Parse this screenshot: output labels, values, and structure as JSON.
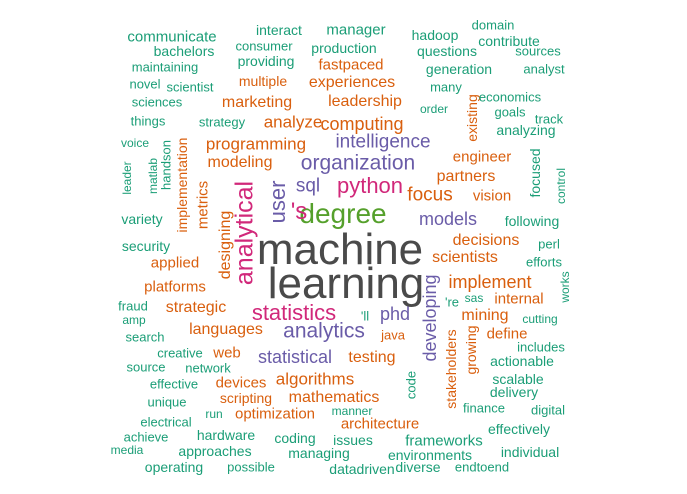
{
  "palette": {
    "gray": "#4a4a4a",
    "purple": "#6a5ca8",
    "green": "#55a02b",
    "magenta": "#d1287a",
    "orange": "#d95f0e",
    "teal": "#1b9e77"
  },
  "words": [
    {
      "text": "machine",
      "color": "gray"
    },
    {
      "text": "learning",
      "color": "gray"
    },
    {
      "text": "degree",
      "color": "green"
    },
    {
      "text": "'s",
      "color": "magenta"
    },
    {
      "text": "python",
      "color": "magenta"
    },
    {
      "text": "sql",
      "color": "purple"
    },
    {
      "text": "user",
      "color": "purple"
    },
    {
      "text": "analytical",
      "color": "magenta"
    },
    {
      "text": "statistics",
      "color": "magenta"
    },
    {
      "text": "analytics",
      "color": "purple"
    },
    {
      "text": "organization",
      "color": "purple"
    },
    {
      "text": "intelligence",
      "color": "purple"
    },
    {
      "text": "programming",
      "color": "orange"
    },
    {
      "text": "computing",
      "color": "orange"
    },
    {
      "text": "analyze",
      "color": "orange"
    },
    {
      "text": "leadership",
      "color": "orange"
    },
    {
      "text": "marketing",
      "color": "orange"
    },
    {
      "text": "experiences",
      "color": "orange"
    },
    {
      "text": "multiple",
      "color": "orange"
    },
    {
      "text": "fastpaced",
      "color": "orange"
    },
    {
      "text": "modeling",
      "color": "orange"
    },
    {
      "text": "focus",
      "color": "orange"
    },
    {
      "text": "partners",
      "color": "orange"
    },
    {
      "text": "engineer",
      "color": "orange"
    },
    {
      "text": "models",
      "color": "purple"
    },
    {
      "text": "decisions",
      "color": "orange"
    },
    {
      "text": "scientists",
      "color": "orange"
    },
    {
      "text": "implement",
      "color": "orange"
    },
    {
      "text": "vision",
      "color": "orange"
    },
    {
      "text": "phd",
      "color": "purple"
    },
    {
      "text": "developing",
      "color": "purple"
    },
    {
      "text": "statistical",
      "color": "purple"
    },
    {
      "text": "testing",
      "color": "orange"
    },
    {
      "text": "algorithms",
      "color": "orange"
    },
    {
      "text": "mathematics",
      "color": "orange"
    },
    {
      "text": "languages",
      "color": "orange"
    },
    {
      "text": "strategic",
      "color": "orange"
    },
    {
      "text": "applied",
      "color": "orange"
    },
    {
      "text": "platforms",
      "color": "orange"
    },
    {
      "text": "designing",
      "color": "orange"
    },
    {
      "text": "metrics",
      "color": "orange"
    },
    {
      "text": "implementation",
      "color": "orange"
    },
    {
      "text": "existing",
      "color": "orange"
    },
    {
      "text": "internal",
      "color": "orange"
    },
    {
      "text": "mining",
      "color": "orange"
    },
    {
      "text": "define",
      "color": "orange"
    },
    {
      "text": "stakeholders",
      "color": "orange"
    },
    {
      "text": "growing",
      "color": "orange"
    },
    {
      "text": "devices",
      "color": "orange"
    },
    {
      "text": "scripting",
      "color": "orange"
    },
    {
      "text": "optimization",
      "color": "orange"
    },
    {
      "text": "web",
      "color": "orange"
    },
    {
      "text": "architecture",
      "color": "orange"
    },
    {
      "text": "java",
      "color": "orange"
    },
    {
      "text": "'ll",
      "color": "teal"
    },
    {
      "text": "'re",
      "color": "teal"
    },
    {
      "text": "sas",
      "color": "teal"
    },
    {
      "text": "communicate",
      "color": "teal"
    },
    {
      "text": "interact",
      "color": "teal"
    },
    {
      "text": "manager",
      "color": "teal"
    },
    {
      "text": "hadoop",
      "color": "teal"
    },
    {
      "text": "domain",
      "color": "teal"
    },
    {
      "text": "contribute",
      "color": "teal"
    },
    {
      "text": "bachelors",
      "color": "teal"
    },
    {
      "text": "consumer",
      "color": "teal"
    },
    {
      "text": "production",
      "color": "teal"
    },
    {
      "text": "questions",
      "color": "teal"
    },
    {
      "text": "sources",
      "color": "teal"
    },
    {
      "text": "maintaining",
      "color": "teal"
    },
    {
      "text": "providing",
      "color": "teal"
    },
    {
      "text": "generation",
      "color": "teal"
    },
    {
      "text": "analyst",
      "color": "teal"
    },
    {
      "text": "novel",
      "color": "teal"
    },
    {
      "text": "scientist",
      "color": "teal"
    },
    {
      "text": "many",
      "color": "teal"
    },
    {
      "text": "sciences",
      "color": "teal"
    },
    {
      "text": "economics",
      "color": "teal"
    },
    {
      "text": "order",
      "color": "teal"
    },
    {
      "text": "goals",
      "color": "teal"
    },
    {
      "text": "things",
      "color": "teal"
    },
    {
      "text": "strategy",
      "color": "teal"
    },
    {
      "text": "track",
      "color": "teal"
    },
    {
      "text": "analyzing",
      "color": "teal"
    },
    {
      "text": "voice",
      "color": "teal"
    },
    {
      "text": "handson",
      "color": "teal"
    },
    {
      "text": "matlab",
      "color": "teal"
    },
    {
      "text": "leader",
      "color": "teal"
    },
    {
      "text": "focused",
      "color": "teal"
    },
    {
      "text": "control",
      "color": "teal"
    },
    {
      "text": "variety",
      "color": "teal"
    },
    {
      "text": "following",
      "color": "teal"
    },
    {
      "text": "security",
      "color": "teal"
    },
    {
      "text": "perl",
      "color": "teal"
    },
    {
      "text": "efforts",
      "color": "teal"
    },
    {
      "text": "works",
      "color": "teal"
    },
    {
      "text": "fraud",
      "color": "teal"
    },
    {
      "text": "amp",
      "color": "teal"
    },
    {
      "text": "cutting",
      "color": "teal"
    },
    {
      "text": "search",
      "color": "teal"
    },
    {
      "text": "creative",
      "color": "teal"
    },
    {
      "text": "includes",
      "color": "teal"
    },
    {
      "text": "actionable",
      "color": "teal"
    },
    {
      "text": "source",
      "color": "teal"
    },
    {
      "text": "network",
      "color": "teal"
    },
    {
      "text": "effective",
      "color": "teal"
    },
    {
      "text": "code",
      "color": "teal"
    },
    {
      "text": "scalable",
      "color": "teal"
    },
    {
      "text": "delivery",
      "color": "teal"
    },
    {
      "text": "unique",
      "color": "teal"
    },
    {
      "text": "manner",
      "color": "teal"
    },
    {
      "text": "finance",
      "color": "teal"
    },
    {
      "text": "digital",
      "color": "teal"
    },
    {
      "text": "electrical",
      "color": "teal"
    },
    {
      "text": "run",
      "color": "teal"
    },
    {
      "text": "effectively",
      "color": "teal"
    },
    {
      "text": "achieve",
      "color": "teal"
    },
    {
      "text": "hardware",
      "color": "teal"
    },
    {
      "text": "coding",
      "color": "teal"
    },
    {
      "text": "issues",
      "color": "teal"
    },
    {
      "text": "frameworks",
      "color": "teal"
    },
    {
      "text": "media",
      "color": "teal"
    },
    {
      "text": "approaches",
      "color": "teal"
    },
    {
      "text": "managing",
      "color": "teal"
    },
    {
      "text": "environments",
      "color": "teal"
    },
    {
      "text": "individual",
      "color": "teal"
    },
    {
      "text": "operating",
      "color": "teal"
    },
    {
      "text": "possible",
      "color": "teal"
    },
    {
      "text": "datadriven",
      "color": "teal"
    },
    {
      "text": "diverse",
      "color": "teal"
    },
    {
      "text": "endtoend",
      "color": "teal"
    }
  ]
}
